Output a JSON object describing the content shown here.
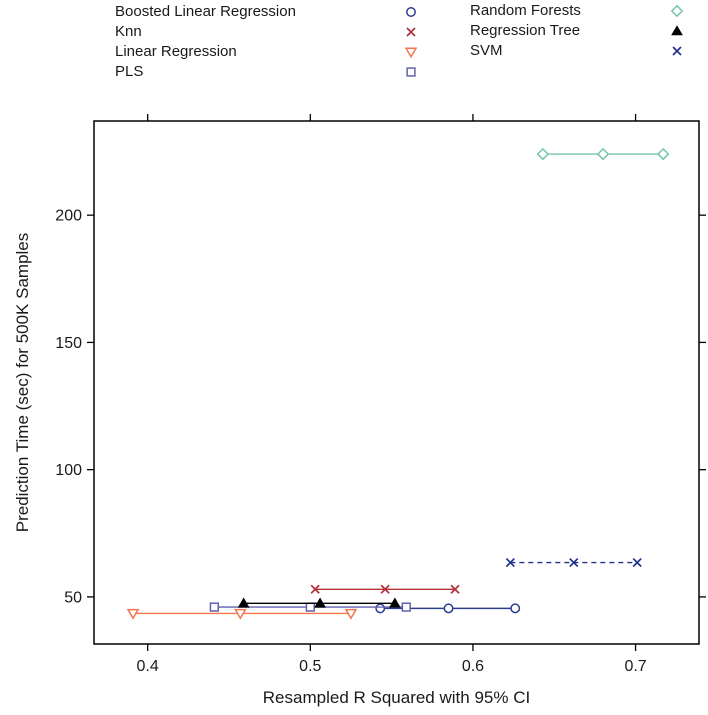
{
  "chart_data": {
    "type": "scatter",
    "title": "",
    "xlabel": "Resampled R Squared with 95% CI",
    "ylabel": "Prediction Time (sec) for 500K Samples",
    "xlim": [
      0.367,
      0.739
    ],
    "ylim": [
      31.5,
      237
    ],
    "x_ticks": [
      0.4,
      0.5,
      0.6,
      0.7
    ],
    "x_tick_labels": [
      "0.4",
      "0.5",
      "0.6",
      "0.7"
    ],
    "y_ticks": [
      50,
      100,
      150,
      200
    ],
    "y_tick_labels": [
      "50",
      "100",
      "150",
      "200"
    ],
    "grid": false,
    "legend_position": "top",
    "frame_color": "#000000",
    "series": [
      {
        "name": "Boosted Linear Regression",
        "marker": "circle-open",
        "color": "#2C3E8E",
        "line_style": "solid",
        "y": 45.5,
        "x": [
          0.543,
          0.585,
          0.626
        ]
      },
      {
        "name": "Knn",
        "marker": "x",
        "color": "#B5303A",
        "line_style": "solid",
        "y": 53.0,
        "x": [
          0.503,
          0.546,
          0.589
        ]
      },
      {
        "name": "Linear Regression",
        "marker": "triangle-down-open",
        "color": "#F4764F",
        "line_style": "solid",
        "y": 43.5,
        "x": [
          0.391,
          0.457,
          0.525
        ]
      },
      {
        "name": "PLS",
        "marker": "square-open",
        "color": "#6161B0",
        "line_style": "solid",
        "y": 46.0,
        "x": [
          0.441,
          0.5,
          0.559
        ]
      },
      {
        "name": "Random Forests",
        "marker": "diamond-open",
        "color": "#74C6A8",
        "line_style": "solid",
        "y": 224.0,
        "x": [
          0.643,
          0.68,
          0.717
        ]
      },
      {
        "name": "Regression Tree",
        "marker": "triangle-up-filled",
        "color": "#000000",
        "line_style": "solid",
        "y": 47.5,
        "x": [
          0.459,
          0.506,
          0.552
        ]
      },
      {
        "name": "SVM",
        "marker": "x",
        "color": "#20338A",
        "line_style": "dashed",
        "y": 63.5,
        "x": [
          0.623,
          0.662,
          0.701
        ]
      }
    ],
    "legend_columns": [
      [
        0,
        1,
        2,
        3
      ],
      [
        4,
        5,
        6
      ]
    ]
  }
}
